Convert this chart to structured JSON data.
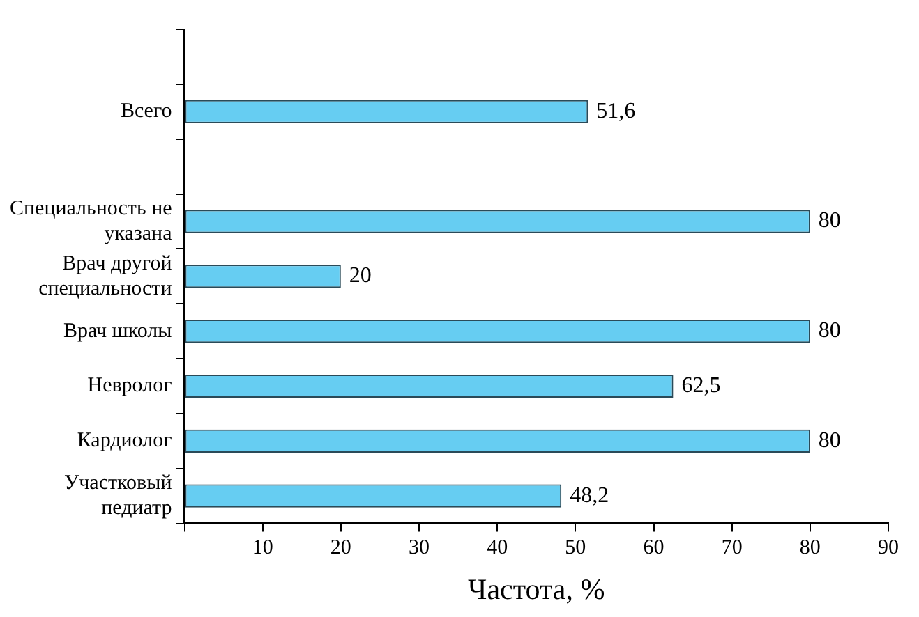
{
  "chart_data": {
    "type": "bar",
    "orientation": "horizontal",
    "xlabel": "Частота, %",
    "categories": [
      null,
      "Всего",
      null,
      "Специальность не указана",
      "Врач другой специальности",
      "Врач школы",
      "Невролог",
      "Кардиолог",
      "Участковый педиатр"
    ],
    "values": [
      null,
      51.6,
      null,
      80,
      20,
      80,
      62.5,
      80,
      48.2
    ],
    "value_labels": [
      null,
      "51,6",
      null,
      "80",
      "20",
      "80",
      "62,5",
      "80",
      "48,2"
    ],
    "color": "#66cdf2",
    "xlim": [
      0,
      90
    ],
    "xticks": [
      {
        "value": 0,
        "label": null
      },
      10,
      20,
      30,
      40,
      50,
      60,
      70,
      80,
      90
    ],
    "grid": false,
    "legend": false
  }
}
